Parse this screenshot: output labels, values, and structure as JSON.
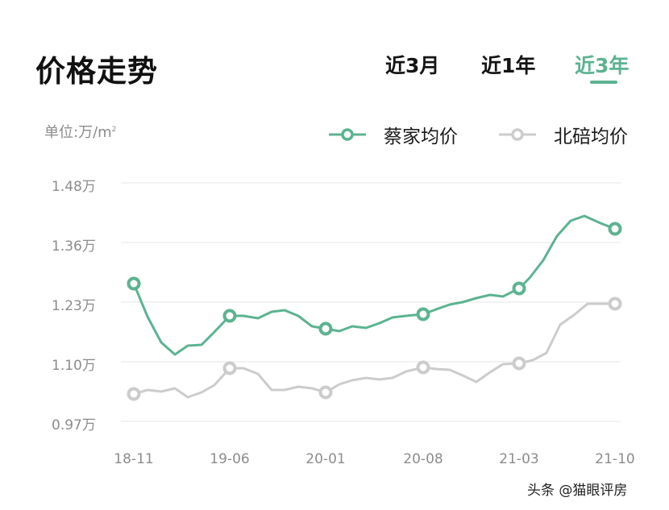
{
  "header": {
    "title": "价格走势",
    "tabs": [
      {
        "label": "近3月",
        "active": false
      },
      {
        "label": "近1年",
        "active": false
      },
      {
        "label": "近3年",
        "active": true
      }
    ]
  },
  "unit_label": "单位:万/m",
  "unit_sup": "2",
  "legend": [
    {
      "label": "蔡家均价",
      "color": "#5cb391"
    },
    {
      "label": "北碚均价",
      "color": "#cccccc"
    }
  ],
  "watermark": "头条 @猫眼评房",
  "colors": {
    "accent": "#5cb391",
    "secondary": "#cccccc",
    "grid": "#eeeeee",
    "axis_text": "#8c8c8c"
  },
  "chart_data": {
    "type": "line",
    "title": "价格走势",
    "ylabel": "单位:万/m²",
    "xlabel": "",
    "x_tick_labels": [
      "18-11",
      "19-06",
      "20-01",
      "20-08",
      "21-03",
      "21-10"
    ],
    "y_tick_labels": [
      "1.48万",
      "1.36万",
      "1.23万",
      "1.10万",
      "0.97万"
    ],
    "ylim": [
      0.97,
      1.48
    ],
    "grid": "horizontal",
    "legend_position": "top-right",
    "categories": [
      "18-11",
      "18-12",
      "19-01",
      "19-02",
      "19-03",
      "19-04",
      "19-05",
      "19-06",
      "19-07",
      "19-08",
      "19-09",
      "19-10",
      "19-11",
      "19-12",
      "20-01",
      "20-02",
      "20-03",
      "20-04",
      "20-05",
      "20-06",
      "20-07",
      "20-08",
      "20-09",
      "20-10",
      "20-11",
      "20-12",
      "21-01",
      "21-02",
      "21-03",
      "21-04",
      "21-05",
      "21-06",
      "21-07",
      "21-08",
      "21-09",
      "21-10"
    ],
    "series": [
      {
        "name": "蔡家均价",
        "color": "#5cb391",
        "marked_points": [
          "18-11",
          "19-06",
          "20-01",
          "20-08",
          "21-03",
          "21-10"
        ],
        "values": [
          1.27,
          1.2,
          1.14,
          1.12,
          1.14,
          1.14,
          1.17,
          1.2,
          1.2,
          1.19,
          1.21,
          1.21,
          1.2,
          1.18,
          1.17,
          1.17,
          1.18,
          1.17,
          1.18,
          1.2,
          1.2,
          1.2,
          1.21,
          1.22,
          1.23,
          1.24,
          1.24,
          1.24,
          1.26,
          1.28,
          1.31,
          1.37,
          1.4,
          1.41,
          1.4,
          1.39
        ],
        "pixels": [
          [
            166,
            352
          ],
          [
            183,
            393
          ],
          [
            200,
            425
          ],
          [
            217,
            440
          ],
          [
            233,
            429
          ],
          [
            250,
            428
          ],
          [
            266,
            412
          ],
          [
            285,
            392
          ],
          [
            302,
            392
          ],
          [
            320,
            395
          ],
          [
            337,
            387
          ],
          [
            353,
            385
          ],
          [
            370,
            392
          ],
          [
            387,
            405
          ],
          [
            404,
            408
          ],
          [
            421,
            411
          ],
          [
            437,
            405
          ],
          [
            454,
            407
          ],
          [
            471,
            401
          ],
          [
            487,
            394
          ],
          [
            504,
            392
          ],
          [
            525,
            390
          ],
          [
            541,
            384
          ],
          [
            558,
            378
          ],
          [
            574,
            375
          ],
          [
            591,
            370
          ],
          [
            608,
            366
          ],
          [
            624,
            368
          ],
          [
            644,
            358
          ],
          [
            657,
            345
          ],
          [
            674,
            323
          ],
          [
            691,
            293
          ],
          [
            708,
            274
          ],
          [
            725,
            268
          ],
          [
            745,
            277
          ],
          [
            763,
            284
          ]
        ]
      },
      {
        "name": "北碚均价",
        "color": "#cccccc",
        "marked_points": [
          "18-11",
          "19-06",
          "20-01",
          "20-08",
          "21-03",
          "21-10"
        ],
        "values": [
          1.03,
          1.04,
          1.04,
          1.04,
          1.03,
          1.04,
          1.05,
          1.09,
          1.09,
          1.08,
          1.04,
          1.04,
          1.05,
          1.04,
          1.04,
          1.05,
          1.06,
          1.07,
          1.06,
          1.07,
          1.08,
          1.09,
          1.09,
          1.08,
          1.07,
          1.06,
          1.08,
          1.1,
          1.1,
          1.11,
          1.12,
          1.18,
          1.2,
          1.23,
          1.23,
          1.23
        ],
        "pixels": [
          [
            166,
            489
          ],
          [
            183,
            484
          ],
          [
            200,
            486
          ],
          [
            217,
            482
          ],
          [
            233,
            493
          ],
          [
            250,
            487
          ],
          [
            266,
            478
          ],
          [
            285,
            457
          ],
          [
            302,
            457
          ],
          [
            320,
            464
          ],
          [
            337,
            484
          ],
          [
            353,
            484
          ],
          [
            370,
            480
          ],
          [
            387,
            482
          ],
          [
            404,
            487
          ],
          [
            421,
            477
          ],
          [
            437,
            472
          ],
          [
            454,
            469
          ],
          [
            471,
            471
          ],
          [
            487,
            469
          ],
          [
            504,
            461
          ],
          [
            525,
            456
          ],
          [
            541,
            458
          ],
          [
            558,
            459
          ],
          [
            574,
            466
          ],
          [
            591,
            474
          ],
          [
            608,
            462
          ],
          [
            624,
            452
          ],
          [
            644,
            451
          ],
          [
            661,
            447
          ],
          [
            678,
            438
          ],
          [
            695,
            403
          ],
          [
            712,
            391
          ],
          [
            729,
            377
          ],
          [
            745,
            377
          ],
          [
            763,
            377
          ]
        ]
      }
    ]
  },
  "layout": {
    "grid_y": [
      227,
      301,
      375,
      449,
      523
    ],
    "grid_x": [
      150,
      770
    ],
    "ytick_y": [
      217,
      291,
      365,
      439,
      513
    ],
    "xtick_x": [
      166,
      285,
      404,
      525,
      644,
      763
    ],
    "marker_index": [
      0,
      7,
      14,
      21,
      28,
      35
    ]
  }
}
